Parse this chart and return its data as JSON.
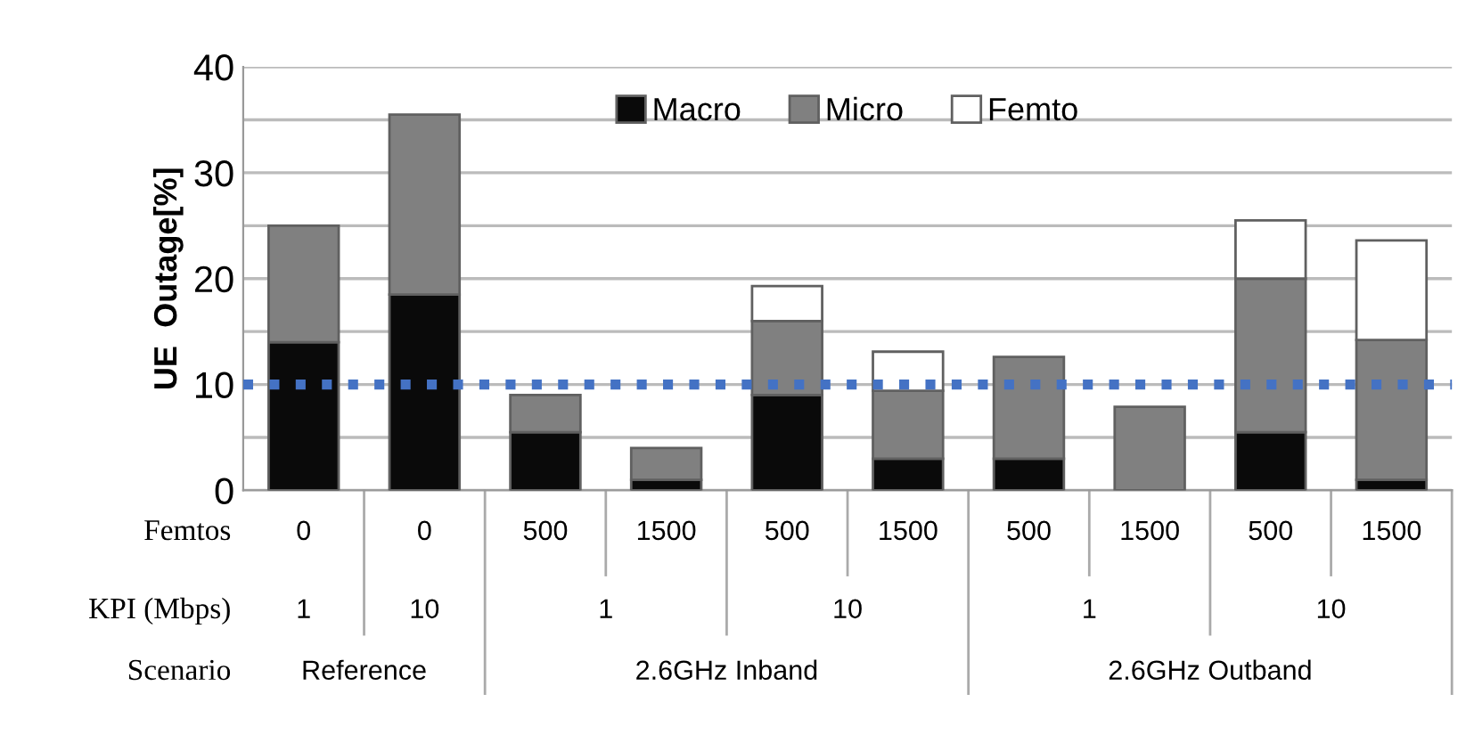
{
  "chart_data": {
    "type": "bar",
    "stacked": true,
    "ylabel": "UE  Outage[%]",
    "categories": [
      "0",
      "0",
      "500",
      "1500",
      "500",
      "1500",
      "500",
      "1500",
      "500",
      "1500"
    ],
    "series": [
      {
        "name": "Macro",
        "color": "#0a0a0a",
        "values": [
          14,
          18.5,
          5.5,
          1,
          9,
          3,
          3,
          0,
          5.5,
          1
        ]
      },
      {
        "name": "Micro",
        "color": "#808080",
        "values": [
          11,
          17,
          3.5,
          3,
          7,
          6.4,
          9.6,
          7.9,
          14.5,
          13.2
        ]
      },
      {
        "name": "Femto",
        "color": "#ffffff",
        "values": [
          0,
          0,
          0,
          0,
          3.3,
          3.7,
          0,
          0,
          5.5,
          9.4
        ]
      }
    ],
    "ylim": [
      0,
      40
    ],
    "yticks": [
      0,
      {
        "value": 5,
        "label": null
      },
      10,
      {
        "value": 15,
        "label": null
      },
      20,
      {
        "value": 25,
        "label": null
      },
      30,
      {
        "value": 35,
        "label": null
      },
      40
    ],
    "grid": "y",
    "legend": "top",
    "ref_lines": [
      {
        "axis": "y",
        "value": 10,
        "color": "#4472c4",
        "line_style": "dotted"
      }
    ],
    "annotations": [
      "Femtos",
      "KPI (Mbps)",
      "Scenario",
      "1",
      "10",
      "1",
      "10",
      "1",
      "10",
      "Reference",
      "2.6GHz Inband",
      "2.6GHz Outband"
    ]
  }
}
